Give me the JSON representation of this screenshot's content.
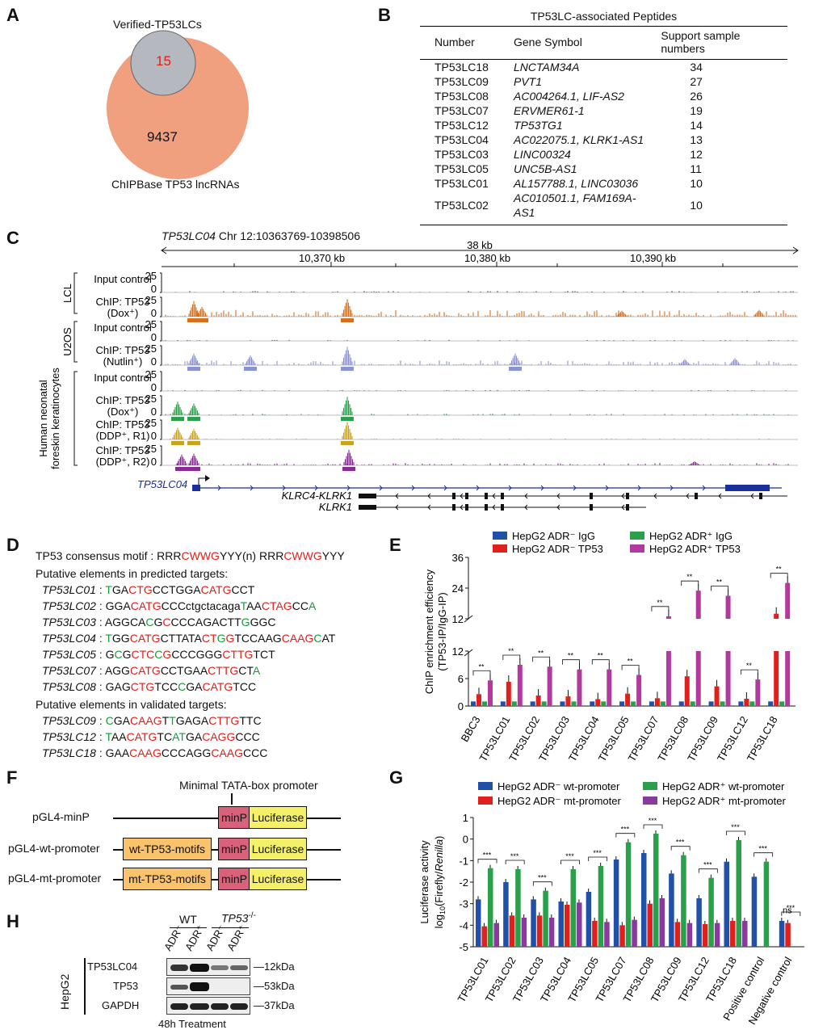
{
  "panels": {
    "A": "A",
    "B": "B",
    "C": "C",
    "D": "D",
    "E": "E",
    "F": "F",
    "G": "G",
    "H": "H"
  },
  "venn": {
    "inner_label": "Verified-TP53LCs",
    "inner_value": "15",
    "outer_value": "9437",
    "outer_label": "ChIPBase TP53 lncRNAs",
    "colors": {
      "outer": "#f0a07f",
      "inner": "#b6b8bf",
      "inner_text": "#e0201a"
    }
  },
  "table": {
    "caption": "TP53LC-associated Peptides",
    "headers": [
      "Number",
      "Gene Symbol",
      "Support sample numbers"
    ],
    "rows": [
      {
        "number": "TP53LC18",
        "gene": "LNCTAM34A",
        "support": "34"
      },
      {
        "number": "TP53LC09",
        "gene": "PVT1",
        "support": "27"
      },
      {
        "number": "TP53LC08",
        "gene": "AC004264.1, LIF-AS2",
        "support": "26"
      },
      {
        "number": "TP53LC07",
        "gene": "ERVMER61-1",
        "support": "19"
      },
      {
        "number": "TP53LC12",
        "gene": "TP53TG1",
        "support": "14"
      },
      {
        "number": "TP53LC04",
        "gene": "AC022075.1, KLRK1-AS1",
        "support": "13"
      },
      {
        "number": "TP53LC03",
        "gene": "LINC00324",
        "support": "12"
      },
      {
        "number": "TP53LC05",
        "gene": "UNC5B-AS1",
        "support": "11"
      },
      {
        "number": "TP53LC01",
        "gene": "AL157788.1, LINC03036",
        "support": "10"
      },
      {
        "number": "TP53LC02",
        "gene": "AC010501.1, FAM169A-AS1",
        "support": "10"
      }
    ]
  },
  "browser": {
    "locus_name": "TP53LC04",
    "locus_coords": "Chr 12:10363769-10398506",
    "scale_label": "38 kb",
    "ticks": [
      "10,370 kb",
      "10,380 kb",
      "10,390 kb"
    ],
    "groups": [
      "LCL",
      "U2OS",
      "Human neonatal foreskin keratinocytes"
    ],
    "tracks": [
      {
        "label": "Input control",
        "sub": "",
        "ymax": "25",
        "yzero": "0",
        "color": "#555555"
      },
      {
        "label": "ChIP: TP53",
        "sub": "(Dox⁺)",
        "ymax": "25",
        "yzero": "0",
        "color": "#d4701e"
      },
      {
        "label": "Input control",
        "sub": "",
        "ymax": "25",
        "yzero": "0",
        "color": "#555555"
      },
      {
        "label": "ChIP: TP53",
        "sub": "(Nutlin⁺)",
        "ymax": "25",
        "yzero": "0",
        "color": "#8a93d4"
      },
      {
        "label": "Input control",
        "sub": "",
        "ymax": "25",
        "yzero": "0",
        "color": "#555555"
      },
      {
        "label": "ChIP: TP53",
        "sub": "(Dox⁺)",
        "ymax": "25",
        "yzero": "0",
        "color": "#2aa04a"
      },
      {
        "label": "ChIP: TP53",
        "sub": "(DDP⁺, R1)",
        "ymax": "25",
        "yzero": "0",
        "color": "#c9a21e"
      },
      {
        "label": "ChIP: TP53",
        "sub": "(DDP⁺, R2)",
        "ymax": "25",
        "yzero": "0",
        "color": "#8a2a99"
      }
    ],
    "genes": [
      "TP53LC04",
      "KLRC4-KLRK1",
      "KLRK1"
    ]
  },
  "motifs": {
    "consensus_prefix": "TP53 consensus motif : RRR",
    "consensus_a": "CWWG",
    "consensus_mid": "YYY(n) RRR",
    "consensus_b": "CWWG",
    "consensus_suffix": "YYY",
    "predicted_header": "Putative elements in predicted targets:",
    "validated_header": "Putative elements in validated targets:"
  },
  "chart_e": {
    "type": "bar",
    "ylabel": "ChIP enrichment efficiency (TP53-IP/IgG-IP)",
    "categories": [
      "BBC3",
      "TP53LC01",
      "TP53LC02",
      "TP53LC03",
      "TP53LC04",
      "TP53LC05",
      "TP53LC07",
      "TP53LC08",
      "TP53LC09",
      "TP53LC12",
      "TP53LC18"
    ],
    "legend": [
      "HepG2 ADR⁻ IgG",
      "HepG2 ADR⁻ TP53",
      "HepG2 ADR⁺ IgG",
      "HepG2 ADR⁺ TP53"
    ],
    "colors": [
      "#2050a8",
      "#e0201a",
      "#2aa04a",
      "#b23a9e"
    ],
    "series": [
      {
        "name": "HepG2 ADR⁻ IgG",
        "values": [
          1,
          1,
          1,
          1,
          1,
          1,
          1,
          1,
          1,
          1,
          1
        ]
      },
      {
        "name": "HepG2 ADR⁻ TP53",
        "values": [
          2.6,
          5.3,
          2.3,
          2.1,
          1.5,
          2.7,
          1.7,
          6.5,
          4.3,
          1.6,
          14
        ]
      },
      {
        "name": "HepG2 ADR⁺ IgG",
        "values": [
          1,
          1,
          1,
          1,
          1,
          1,
          1,
          1,
          1,
          1,
          1
        ]
      },
      {
        "name": "HepG2 ADR⁺ TP53",
        "values": [
          5.6,
          9,
          8.6,
          8,
          8,
          6.8,
          13,
          23,
          21,
          5.8,
          26
        ]
      }
    ],
    "yticks_lower": [
      "0",
      "6",
      "12"
    ],
    "yticks_upper": [
      "12",
      "24",
      "36"
    ]
  },
  "constructs": {
    "title": "Minimal TATA-box promoter",
    "rows": [
      {
        "name": "pGL4-minP",
        "promoter": ""
      },
      {
        "name": "pGL4-wt-promoter",
        "promoter": "wt-TP53-motifs"
      },
      {
        "name": "pGL4-mt-promoter",
        "promoter": "mt-TP53-motifs"
      }
    ],
    "minp": "minP",
    "luc": "Luciferase"
  },
  "chart_g": {
    "type": "bar",
    "ylabel": "Luciferase activity",
    "ylabel2_pre": "log",
    "ylabel2_sub": "10",
    "ylabel2_mid": "(Firefly/",
    "ylabel2_it": "Renilla",
    "ylabel2_post": ")",
    "ylim": [
      -5,
      1
    ],
    "yticks": [
      "1",
      "0",
      "-1",
      "-2",
      "-3",
      "-4",
      "-5"
    ],
    "categories": [
      "TP53LC01",
      "TP53LC02",
      "TP53LC03",
      "TP53LC04",
      "TP53LC05",
      "TP53LC07",
      "TP53LC08",
      "TP53LC09",
      "TP53LC12",
      "TP53LC18",
      "Positive control",
      "Negative control"
    ],
    "legend": [
      "HepG2 ADR⁻ wt-promoter",
      "HepG2 ADR⁻ mt-promoter",
      "HepG2 ADR⁺ wt-promoter",
      "HepG2 ADR⁺ mt-promoter"
    ],
    "colors": [
      "#2050a8",
      "#e0201a",
      "#2aa04a",
      "#8a3a9e"
    ],
    "series": [
      {
        "name": "HepG2 ADR⁻ wt-promoter",
        "values": [
          -2.8,
          -2.0,
          -2.8,
          -2.9,
          -2.45,
          -0.95,
          -0.65,
          -1.6,
          -2.75,
          -1.05,
          -1.75,
          -3.8
        ]
      },
      {
        "name": "HepG2 ADR⁻ mt-promoter",
        "values": [
          -4.05,
          -3.55,
          -3.55,
          -3.05,
          -3.8,
          -4.0,
          -3.0,
          -3.85,
          -3.95,
          -3.8,
          null,
          -3.9
        ]
      },
      {
        "name": "HepG2 ADR⁺ wt-promoter",
        "values": [
          -1.35,
          -1.4,
          -2.4,
          -1.4,
          -1.25,
          -0.15,
          0.25,
          -0.75,
          -1.8,
          -0.05,
          -1.05,
          null
        ]
      },
      {
        "name": "HepG2 ADR⁺ mt-promoter",
        "values": [
          -3.9,
          -3.65,
          -3.65,
          -2.95,
          -3.85,
          -3.75,
          -2.75,
          -3.9,
          -3.9,
          -3.8,
          null,
          null
        ]
      }
    ],
    "ns": "ns"
  },
  "blot": {
    "group_wt": "WT",
    "group_ko_pre": "TP53",
    "group_ko_sup": "-/-",
    "lanes": [
      "ADR⁻",
      "ADR⁺",
      "ADR⁻",
      "ADR⁺"
    ],
    "cell": "HepG2",
    "rows": [
      {
        "name": "TP53LC04",
        "size": "12kDa"
      },
      {
        "name": "TP53",
        "size": "53kDa"
      },
      {
        "name": "GAPDH",
        "size": "37kDa"
      }
    ],
    "treatment": "48h Treatment"
  }
}
